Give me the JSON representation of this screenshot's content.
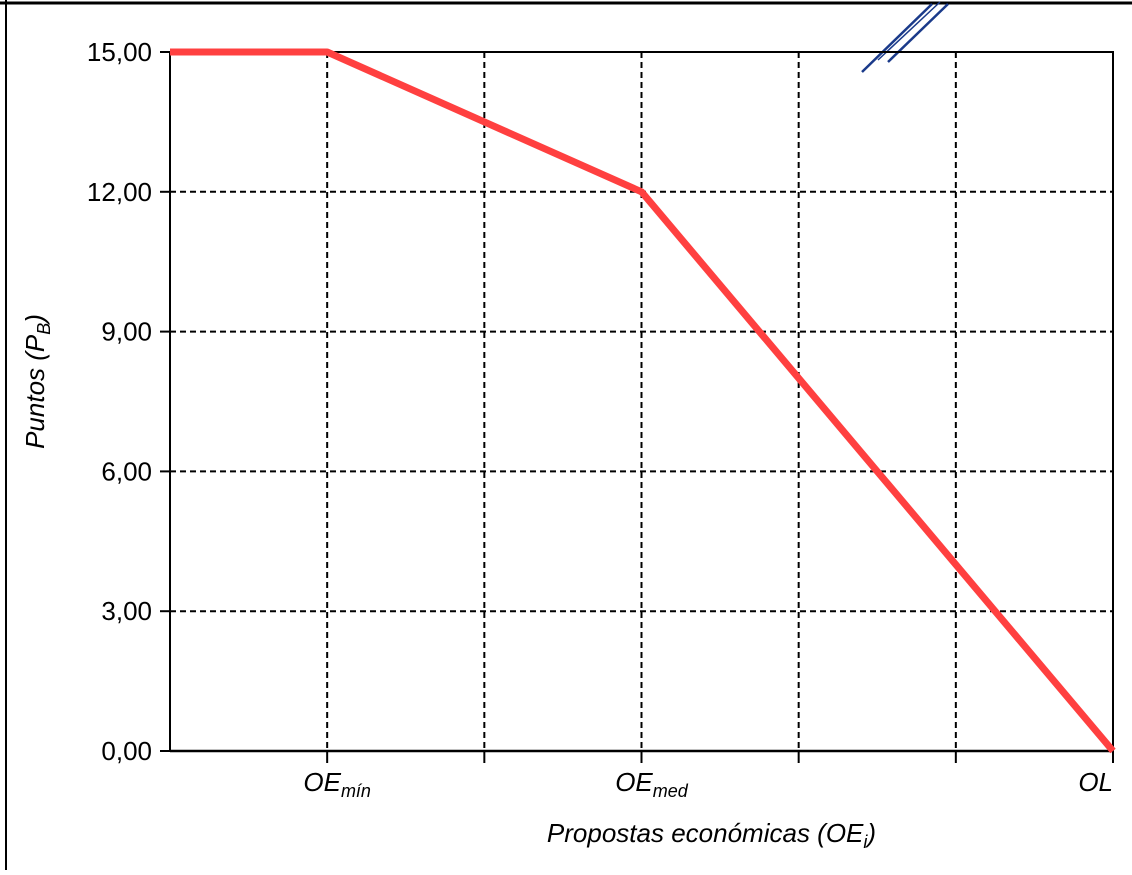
{
  "chart_data": {
    "type": "line",
    "x": [
      0,
      1,
      3,
      6
    ],
    "x_range": [
      0,
      6
    ],
    "x_ticks_positions": [
      1,
      3,
      6
    ],
    "x_tick_labels": [
      {
        "main": "OE",
        "sub": "mín"
      },
      {
        "main": "OE",
        "sub": "med"
      },
      {
        "main": "OL",
        "sub": ""
      }
    ],
    "series": [
      {
        "values": [
          15.0,
          15.0,
          12.0,
          0.0
        ],
        "color": "#ff4040"
      }
    ],
    "ylim": [
      0,
      15
    ],
    "y_ticks": [
      "0,00",
      "3,00",
      "6,00",
      "9,00",
      "12,00",
      "15,00"
    ],
    "y_tick_values": [
      0,
      3,
      6,
      9,
      12,
      15
    ],
    "xlabel": {
      "main": "Propostas económicas (OE",
      "sub": "i",
      "end": ")"
    },
    "ylabel": {
      "main": "Puntos (P",
      "sub": "B",
      "end": ")"
    },
    "grid": true,
    "grid_style": "dashed"
  },
  "colors": {
    "line": "#ff4040",
    "grid": "#000000",
    "axis": "#000000",
    "signature": "#1a3a8a"
  }
}
